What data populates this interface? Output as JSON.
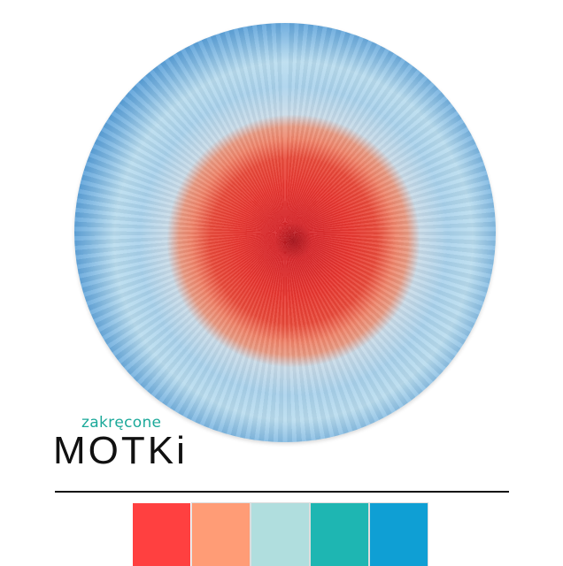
{
  "logo": {
    "small": "zakręcone",
    "big": "MOTKi"
  },
  "swatches": [
    "#ff4040",
    "#ff9c76",
    "#b0dede",
    "#1eb6b2",
    "#0f9fd4"
  ],
  "yarn_colors": {
    "center": "#e8352f",
    "mid": "#f0846a",
    "light": "#a9d2ec",
    "outer": "#1f74c6"
  }
}
